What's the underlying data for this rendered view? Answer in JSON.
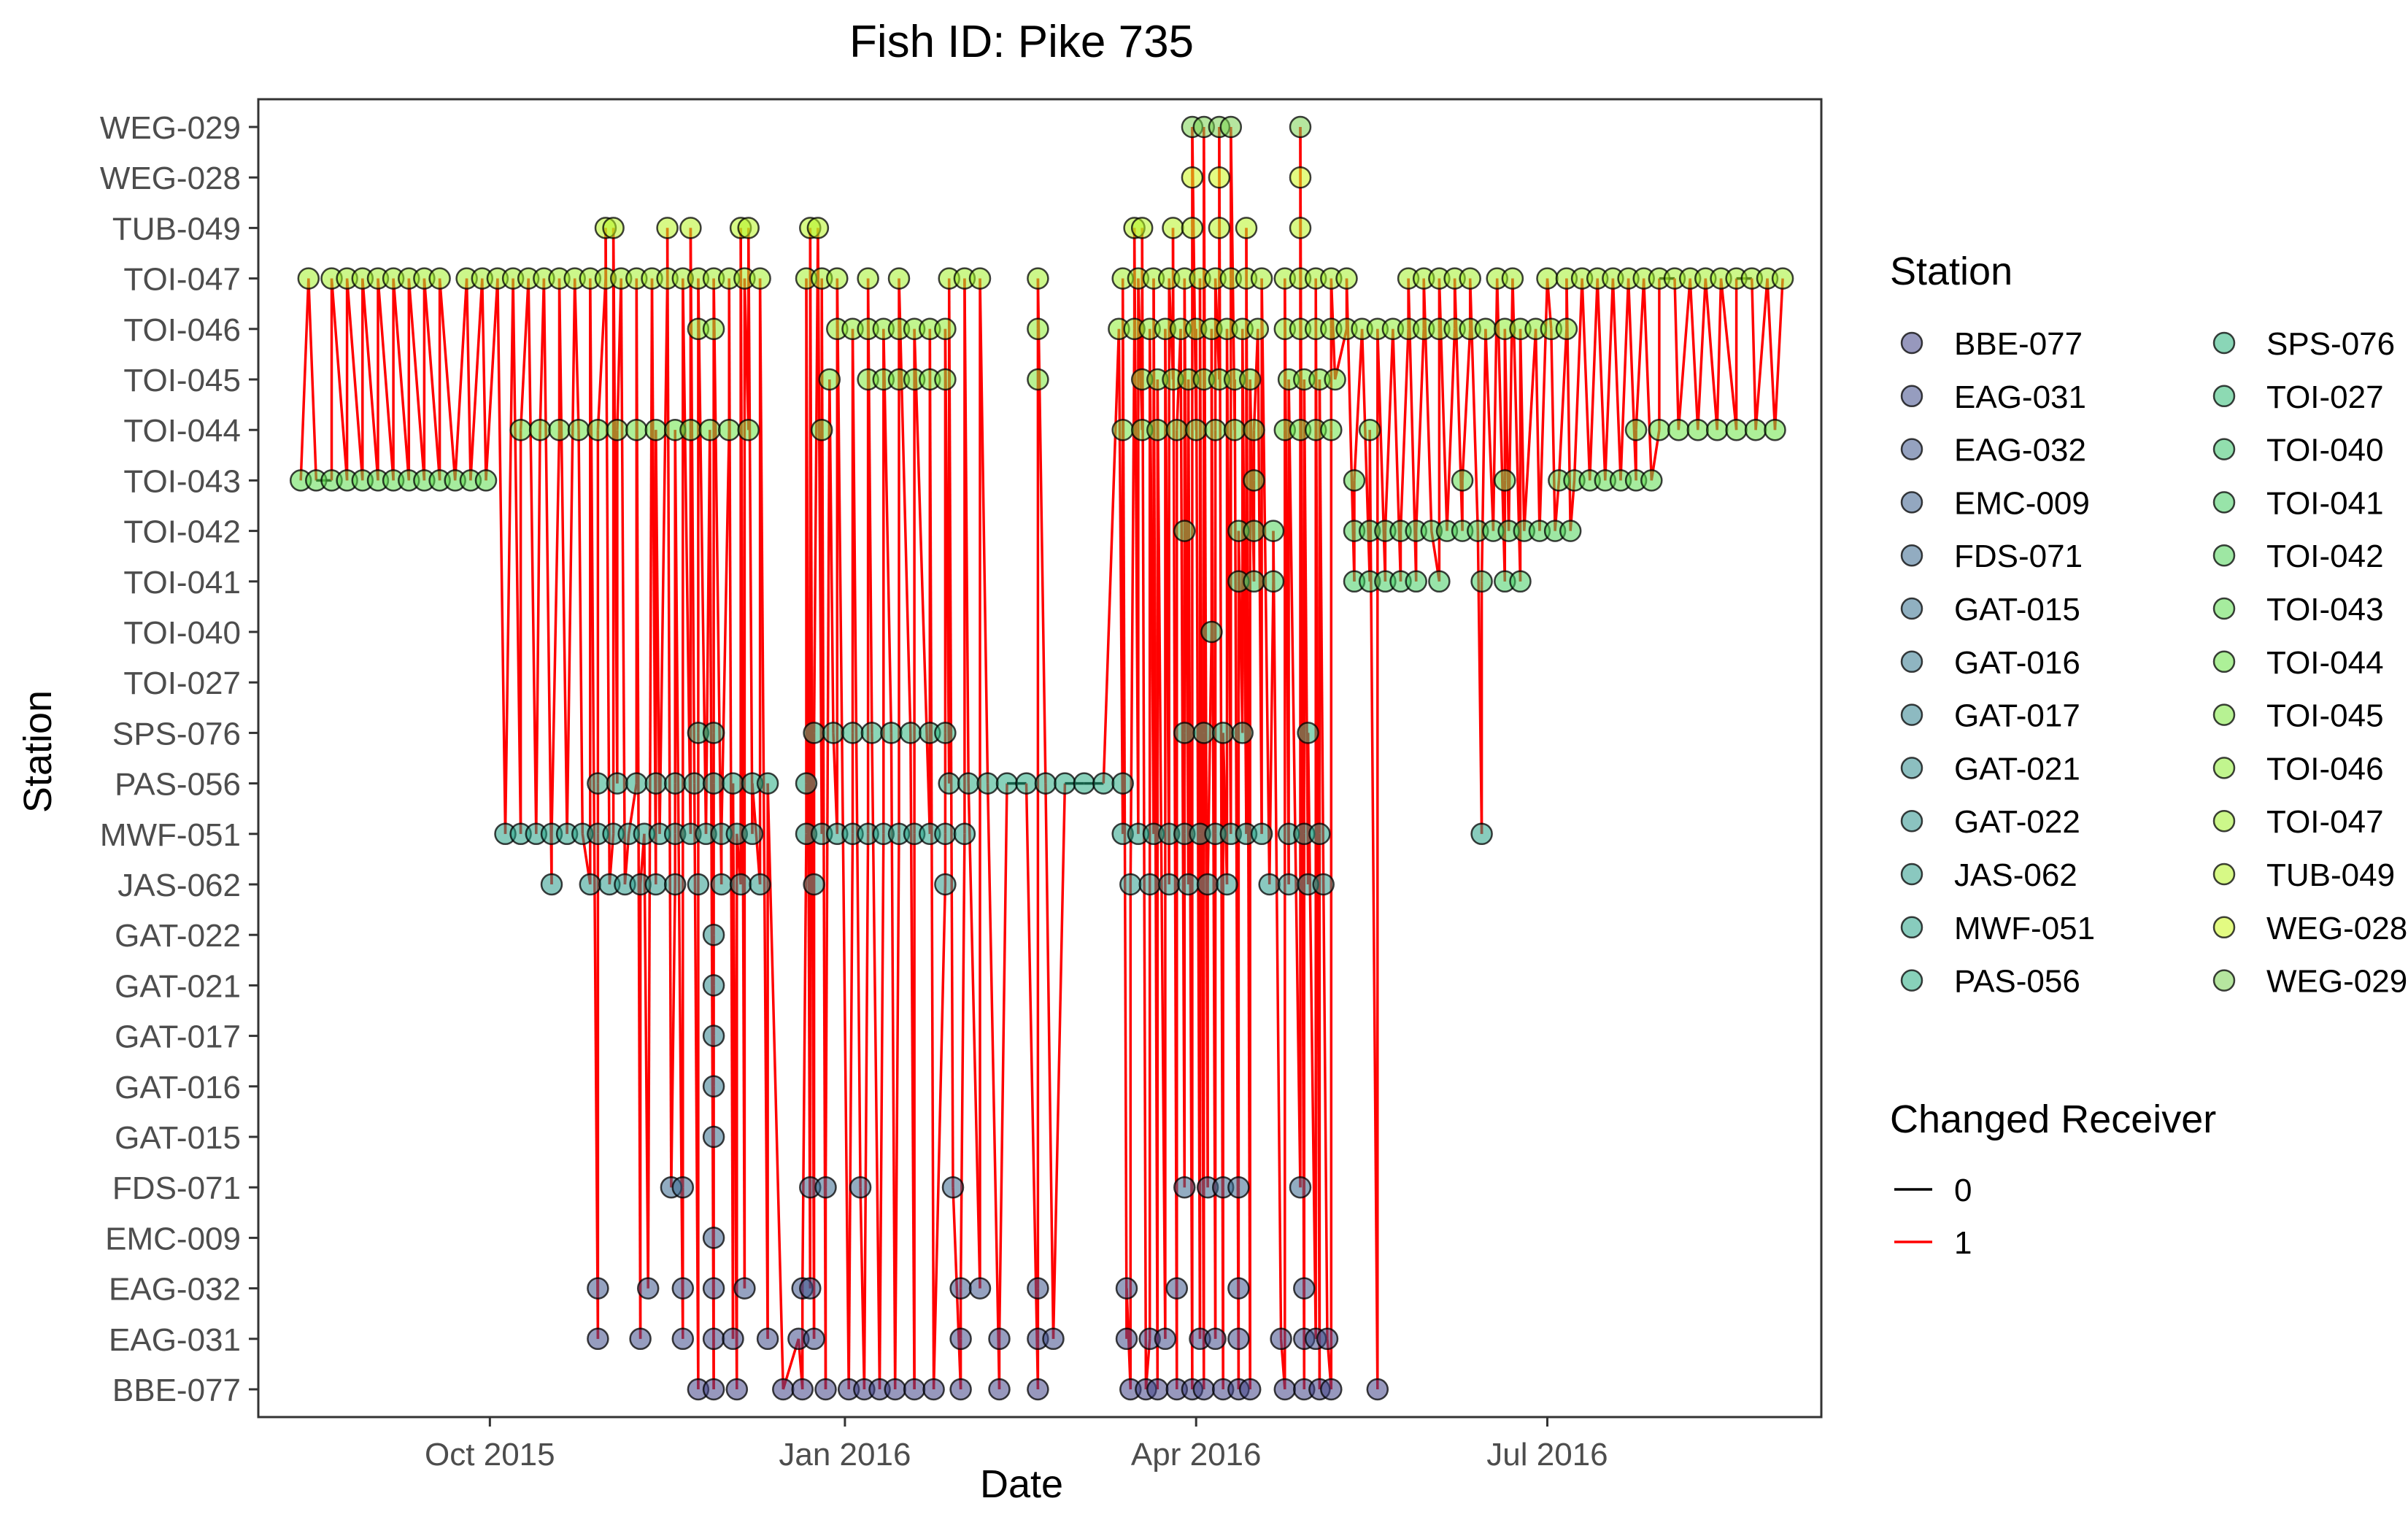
{
  "chart_data": {
    "type": "scatter",
    "title": "Fish ID: Pike 735",
    "xlabel": "Date",
    "ylabel": "Station",
    "x_axis_type": "date",
    "xlim": [
      "2015-08-02",
      "2016-09-10"
    ],
    "x_ticks": [
      {
        "date": "2015-10-01",
        "label": "Oct 2015"
      },
      {
        "date": "2016-01-01",
        "label": "Jan 2016"
      },
      {
        "date": "2016-04-01",
        "label": "Apr 2016"
      },
      {
        "date": "2016-07-01",
        "label": "Jul 2016"
      }
    ],
    "stations": [
      "BBE-077",
      "EAG-031",
      "EAG-032",
      "EMC-009",
      "FDS-071",
      "GAT-015",
      "GAT-016",
      "GAT-017",
      "GAT-021",
      "GAT-022",
      "JAS-062",
      "MWF-051",
      "PAS-056",
      "SPS-076",
      "TOI-027",
      "TOI-040",
      "TOI-041",
      "TOI-042",
      "TOI-043",
      "TOI-044",
      "TOI-045",
      "TOI-046",
      "TOI-047",
      "TUB-049",
      "WEG-028",
      "WEG-029"
    ],
    "station_colors": {
      "BBE-077": "#414487",
      "EAG-031": "#3f4c8a",
      "EAG-032": "#3e558c",
      "EMC-009": "#3b5e8d",
      "FDS-071": "#38678e",
      "GAT-015": "#35708e",
      "GAT-016": "#33798e",
      "GAT-017": "#30818e",
      "GAT-021": "#2e8a8d",
      "GAT-022": "#2b928c",
      "JAS-062": "#299b8a",
      "MWF-051": "#27a386",
      "PAS-056": "#27ac81",
      "SPS-076": "#2ab47c",
      "TOI-027": "#30bc74",
      "TOI-040": "#38c56c",
      "TOI-041": "#43cd62",
      "TOI-042": "#4fd458",
      "TOI-043": "#5cdc4e",
      "TOI-044": "#6ae343",
      "TOI-045": "#7be83a",
      "TOI-046": "#8eec31",
      "TOI-047": "#a2f02a",
      "TUB-049": "#b7f423",
      "WEG-028": "#ccf71c",
      "WEG-029": "#7ad151"
    },
    "changed_receiver_colors": {
      "0": "#000000",
      "1": "#ff0000"
    },
    "legend": {
      "placement": "right",
      "station_title": "Station",
      "receiver_title": "Changed Receiver",
      "receiver_items": [
        {
          "label": "0",
          "color": "#000000"
        },
        {
          "label": "1",
          "color": "#ff0000"
        }
      ]
    },
    "grid": false,
    "series": [
      {
        "station": "BBE-077",
        "x": [
          "2015-11-24",
          "2015-11-28",
          "2015-12-04",
          "2015-12-16",
          "2015-12-21",
          "2015-12-27",
          "2016-01-02",
          "2016-01-06",
          "2016-01-10",
          "2016-01-14",
          "2016-01-19",
          "2016-01-24",
          "2016-01-31",
          "2016-02-10",
          "2016-02-20",
          "2016-03-15",
          "2016-03-19",
          "2016-03-22",
          "2016-03-27",
          "2016-03-31",
          "2016-04-03",
          "2016-04-08",
          "2016-04-12",
          "2016-04-15",
          "2016-04-24",
          "2016-04-29",
          "2016-05-03",
          "2016-05-06",
          "2016-05-18"
        ]
      },
      {
        "station": "EAG-031",
        "x": [
          "2015-10-29",
          "2015-11-09",
          "2015-11-20",
          "2015-11-28",
          "2015-12-03",
          "2015-12-12",
          "2015-12-20",
          "2015-12-24",
          "2016-01-31",
          "2016-02-10",
          "2016-02-20",
          "2016-02-24",
          "2016-03-14",
          "2016-03-20",
          "2016-03-24",
          "2016-04-02",
          "2016-04-06",
          "2016-04-12",
          "2016-04-23",
          "2016-04-29",
          "2016-05-02",
          "2016-05-05"
        ]
      },
      {
        "station": "EAG-032",
        "x": [
          "2015-10-29",
          "2015-11-11",
          "2015-11-20",
          "2015-11-28",
          "2015-12-06",
          "2015-12-21",
          "2015-12-23",
          "2016-01-31",
          "2016-02-05",
          "2016-02-20",
          "2016-03-14",
          "2016-03-27",
          "2016-04-12",
          "2016-04-29"
        ]
      },
      {
        "station": "EMC-009",
        "x": [
          "2015-11-28"
        ]
      },
      {
        "station": "FDS-071",
        "x": [
          "2015-11-17",
          "2015-11-20",
          "2015-12-23",
          "2015-12-27",
          "2016-01-05",
          "2016-01-29",
          "2016-03-29",
          "2016-04-04",
          "2016-04-08",
          "2016-04-12",
          "2016-04-28"
        ]
      },
      {
        "station": "GAT-015",
        "x": [
          "2015-11-28"
        ]
      },
      {
        "station": "GAT-016",
        "x": [
          "2015-11-28"
        ]
      },
      {
        "station": "GAT-017",
        "x": [
          "2015-11-28"
        ]
      },
      {
        "station": "GAT-021",
        "x": [
          "2015-11-28"
        ]
      },
      {
        "station": "GAT-022",
        "x": [
          "2015-11-28"
        ]
      },
      {
        "station": "JAS-062",
        "x": [
          "2015-10-17",
          "2015-10-27",
          "2015-11-01",
          "2015-11-05",
          "2015-11-09",
          "2015-11-13",
          "2015-11-18",
          "2015-11-24",
          "2015-11-30",
          "2015-12-05",
          "2015-12-10",
          "2015-12-24",
          "2016-01-27",
          "2016-03-15",
          "2016-03-20",
          "2016-03-25",
          "2016-03-30",
          "2016-04-04",
          "2016-04-09",
          "2016-04-20",
          "2016-04-25",
          "2016-04-30",
          "2016-05-04"
        ]
      },
      {
        "station": "MWF-051",
        "x": [
          "2015-10-05",
          "2015-10-09",
          "2015-10-13",
          "2015-10-17",
          "2015-10-21",
          "2015-10-25",
          "2015-10-29",
          "2015-11-02",
          "2015-11-06",
          "2015-11-10",
          "2015-11-14",
          "2015-11-18",
          "2015-11-22",
          "2015-11-26",
          "2015-11-30",
          "2015-12-04",
          "2015-12-08",
          "2015-12-22",
          "2015-12-26",
          "2015-12-30",
          "2016-01-03",
          "2016-01-07",
          "2016-01-11",
          "2016-01-15",
          "2016-01-19",
          "2016-01-23",
          "2016-01-27",
          "2016-02-01",
          "2016-03-13",
          "2016-03-17",
          "2016-03-21",
          "2016-03-25",
          "2016-03-29",
          "2016-04-02",
          "2016-04-06",
          "2016-04-10",
          "2016-04-14",
          "2016-04-18",
          "2016-04-25",
          "2016-04-29",
          "2016-05-03",
          "2016-06-14"
        ]
      },
      {
        "station": "PAS-056",
        "x": [
          "2015-10-29",
          "2015-11-03",
          "2015-11-08",
          "2015-11-13",
          "2015-11-18",
          "2015-11-23",
          "2015-11-28",
          "2015-12-03",
          "2015-12-08",
          "2015-12-12",
          "2015-12-22",
          "2016-01-28",
          "2016-02-02",
          "2016-02-07",
          "2016-02-12",
          "2016-02-17",
          "2016-02-22",
          "2016-02-27",
          "2016-03-03",
          "2016-03-08",
          "2016-03-13"
        ]
      },
      {
        "station": "SPS-076",
        "x": [
          "2015-11-24",
          "2015-11-28",
          "2015-12-24",
          "2015-12-29",
          "2016-01-03",
          "2016-01-08",
          "2016-01-13",
          "2016-01-18",
          "2016-01-23",
          "2016-01-27",
          "2016-03-29",
          "2016-04-03",
          "2016-04-08",
          "2016-04-13",
          "2016-04-30"
        ]
      },
      {
        "station": "TOI-040",
        "x": [
          "2016-04-05"
        ]
      },
      {
        "station": "TOI-041",
        "x": [
          "2016-04-12",
          "2016-04-16",
          "2016-04-21",
          "2016-05-12",
          "2016-05-16",
          "2016-05-20",
          "2016-05-24",
          "2016-05-28",
          "2016-06-03",
          "2016-06-14",
          "2016-06-20",
          "2016-06-24"
        ]
      },
      {
        "station": "TOI-042",
        "x": [
          "2016-03-29",
          "2016-04-12",
          "2016-04-16",
          "2016-04-21",
          "2016-05-12",
          "2016-05-16",
          "2016-05-20",
          "2016-05-24",
          "2016-05-28",
          "2016-06-01",
          "2016-06-05",
          "2016-06-09",
          "2016-06-13",
          "2016-06-17",
          "2016-06-21",
          "2016-06-25",
          "2016-06-29",
          "2016-07-03",
          "2016-07-07"
        ]
      },
      {
        "station": "TOI-043",
        "x": [
          "2015-08-13",
          "2015-08-17",
          "2015-08-21",
          "2015-08-25",
          "2015-08-29",
          "2015-09-02",
          "2015-09-06",
          "2015-09-10",
          "2015-09-14",
          "2015-09-18",
          "2015-09-22",
          "2015-09-26",
          "2015-09-30",
          "2016-04-16",
          "2016-05-12",
          "2016-06-09",
          "2016-06-20",
          "2016-07-04",
          "2016-07-08",
          "2016-07-12",
          "2016-07-16",
          "2016-07-20",
          "2016-07-24",
          "2016-07-28"
        ]
      },
      {
        "station": "TOI-044",
        "x": [
          "2015-10-09",
          "2015-10-14",
          "2015-10-19",
          "2015-10-24",
          "2015-10-29",
          "2015-11-03",
          "2015-11-08",
          "2015-11-13",
          "2015-11-18",
          "2015-11-22",
          "2015-11-27",
          "2015-12-02",
          "2015-12-07",
          "2015-12-26",
          "2016-03-13",
          "2016-03-18",
          "2016-03-22",
          "2016-03-27",
          "2016-04-01",
          "2016-04-06",
          "2016-04-11",
          "2016-04-16",
          "2016-04-24",
          "2016-04-28",
          "2016-05-02",
          "2016-05-06",
          "2016-05-16",
          "2016-07-24",
          "2016-07-30",
          "2016-08-04",
          "2016-08-09",
          "2016-08-14",
          "2016-08-19",
          "2016-08-24",
          "2016-08-29"
        ]
      },
      {
        "station": "TOI-045",
        "x": [
          "2015-12-28",
          "2016-01-07",
          "2016-01-11",
          "2016-01-15",
          "2016-01-19",
          "2016-01-23",
          "2016-01-27",
          "2016-03-18",
          "2016-03-22",
          "2016-03-26",
          "2016-03-30",
          "2016-04-03",
          "2016-04-07",
          "2016-04-11",
          "2016-04-15",
          "2016-04-25",
          "2016-04-29",
          "2016-05-03",
          "2016-05-07",
          "2016-02-20"
        ]
      },
      {
        "station": "TOI-046",
        "x": [
          "2015-11-24",
          "2015-11-28",
          "2015-12-30",
          "2016-01-03",
          "2016-01-07",
          "2016-01-11",
          "2016-01-15",
          "2016-01-19",
          "2016-01-23",
          "2016-01-27",
          "2016-02-20",
          "2016-03-12",
          "2016-03-16",
          "2016-03-20",
          "2016-03-24",
          "2016-03-28",
          "2016-04-01",
          "2016-04-05",
          "2016-04-09",
          "2016-04-13",
          "2016-04-17",
          "2016-04-24",
          "2016-04-28",
          "2016-05-02",
          "2016-05-06",
          "2016-05-10",
          "2016-05-14",
          "2016-05-18",
          "2016-05-22",
          "2016-05-26",
          "2016-05-30",
          "2016-06-03",
          "2016-06-07",
          "2016-06-11",
          "2016-06-15",
          "2016-06-20",
          "2016-06-24",
          "2016-06-28",
          "2016-07-02",
          "2016-07-06"
        ]
      },
      {
        "station": "TOI-047",
        "x": [
          "2015-08-15",
          "2015-08-21",
          "2015-08-25",
          "2015-08-29",
          "2015-09-02",
          "2015-09-06",
          "2015-09-10",
          "2015-09-14",
          "2015-09-18",
          "2015-09-25",
          "2015-09-29",
          "2015-10-03",
          "2015-10-07",
          "2015-10-11",
          "2015-10-15",
          "2015-10-19",
          "2015-10-23",
          "2015-10-27",
          "2015-10-31",
          "2015-11-04",
          "2015-11-08",
          "2015-11-12",
          "2015-11-16",
          "2015-11-20",
          "2015-11-24",
          "2015-11-28",
          "2015-12-02",
          "2015-12-06",
          "2015-12-10",
          "2015-12-22",
          "2015-12-26",
          "2015-12-30",
          "2016-01-07",
          "2016-01-15",
          "2016-01-28",
          "2016-02-01",
          "2016-02-05",
          "2016-02-20",
          "2016-03-13",
          "2016-03-17",
          "2016-03-21",
          "2016-03-25",
          "2016-03-29",
          "2016-04-02",
          "2016-04-06",
          "2016-04-10",
          "2016-04-14",
          "2016-04-18",
          "2016-04-24",
          "2016-04-28",
          "2016-05-02",
          "2016-05-06",
          "2016-05-10",
          "2016-05-26",
          "2016-05-30",
          "2016-06-03",
          "2016-06-07",
          "2016-06-11",
          "2016-06-18",
          "2016-06-22",
          "2016-07-01",
          "2016-07-06",
          "2016-07-10",
          "2016-07-14",
          "2016-07-18",
          "2016-07-22",
          "2016-07-26",
          "2016-07-30",
          "2016-08-03",
          "2016-08-07",
          "2016-08-11",
          "2016-08-15",
          "2016-08-19",
          "2016-08-23",
          "2016-08-27",
          "2016-08-31"
        ]
      },
      {
        "station": "TUB-049",
        "x": [
          "2015-10-31",
          "2015-11-02",
          "2015-11-16",
          "2015-11-22",
          "2015-12-05",
          "2015-12-07",
          "2015-12-23",
          "2015-12-25",
          "2016-03-16",
          "2016-03-18",
          "2016-03-26",
          "2016-03-31",
          "2016-04-07",
          "2016-04-14",
          "2016-04-28"
        ]
      },
      {
        "station": "WEG-028",
        "x": [
          "2016-03-31",
          "2016-04-07",
          "2016-04-28"
        ]
      },
      {
        "station": "WEG-029",
        "x": [
          "2016-03-31",
          "2016-04-03",
          "2016-04-07",
          "2016-04-10",
          "2016-04-28"
        ]
      }
    ]
  }
}
